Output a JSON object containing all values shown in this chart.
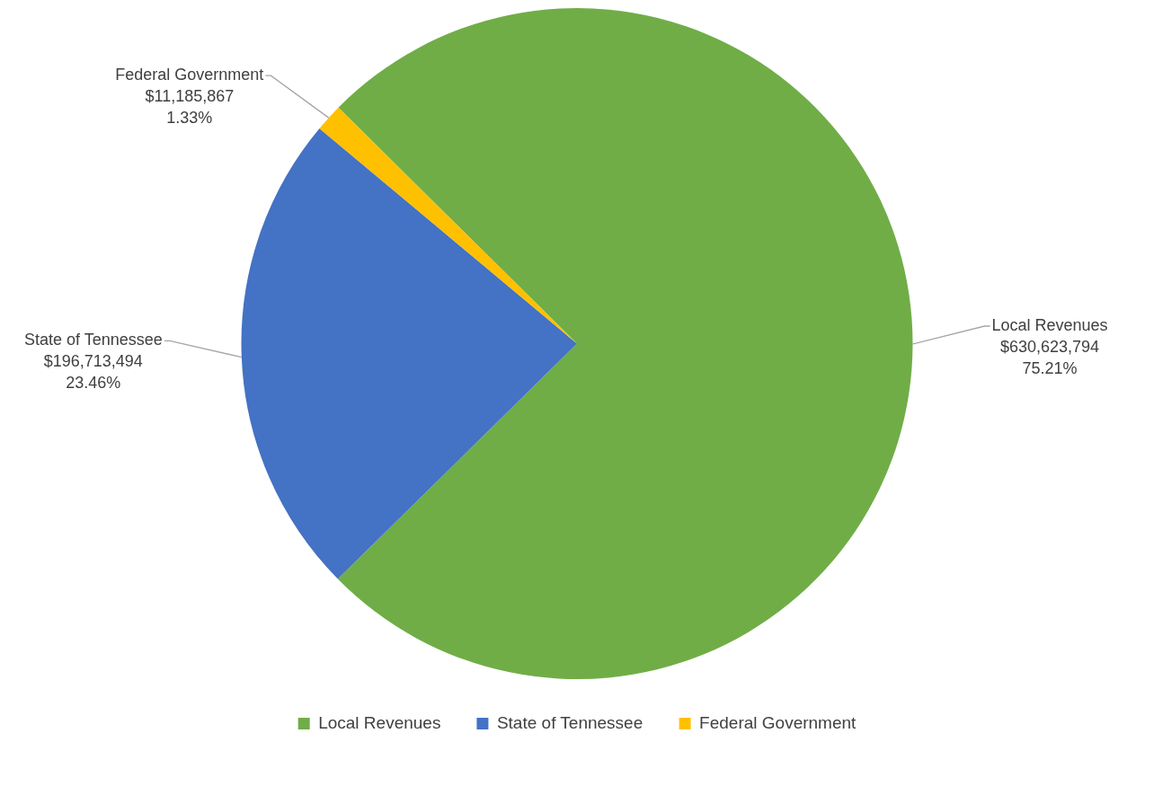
{
  "chart_data": {
    "type": "pie",
    "categories": [
      "Local Revenues",
      "State of Tennessee",
      "Federal Government"
    ],
    "values": [
      630623794,
      196713494,
      11185867
    ],
    "colors": [
      "#70ad47",
      "#4472c4",
      "#ffc000"
    ],
    "value_labels": [
      "$630,623,794\n75.21%",
      "$196,713,494\n23.46%",
      "$11,185,867\n1.33%"
    ],
    "legend": "bottom"
  }
}
